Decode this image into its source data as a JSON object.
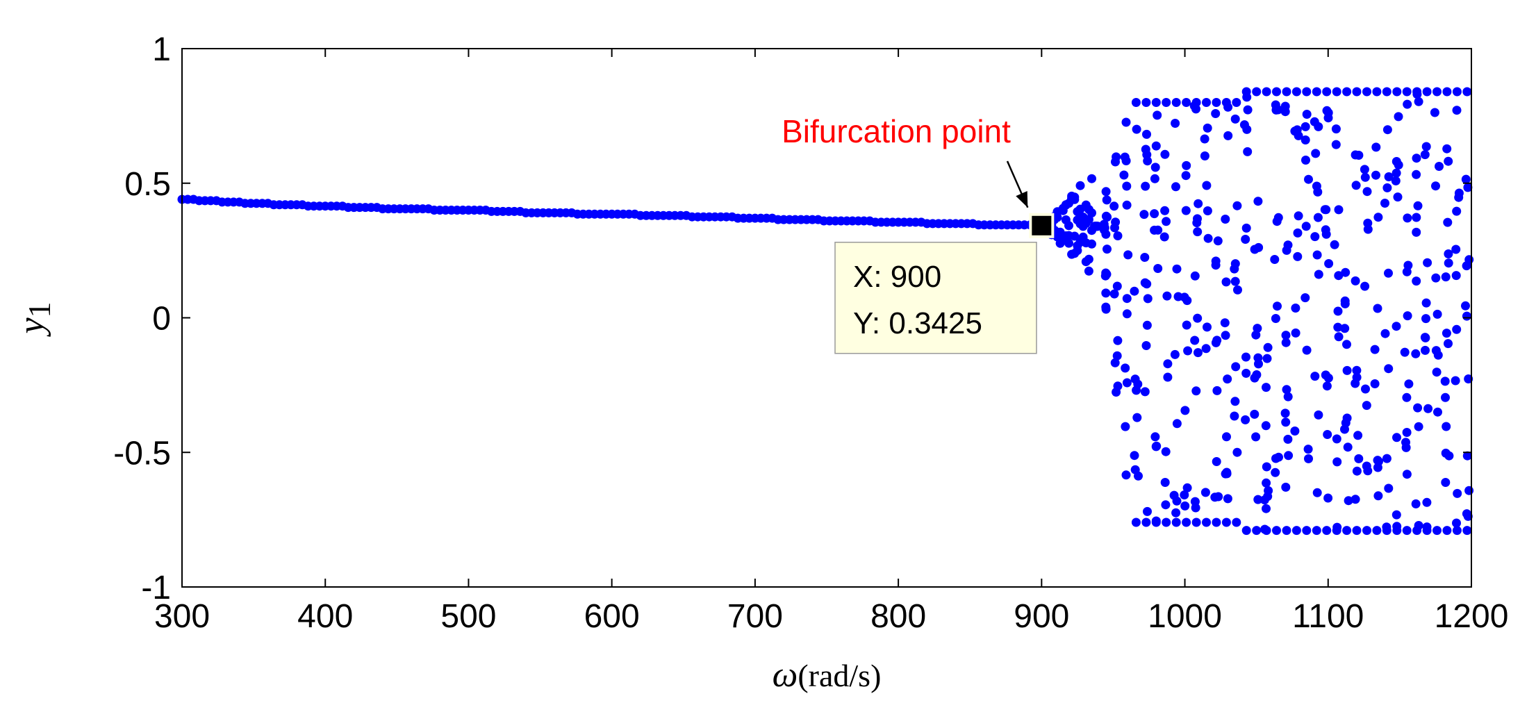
{
  "chart_data": {
    "type": "scatter",
    "title": "",
    "xlabel_symbol": "ω",
    "xlabel_unit": "(rad/s)",
    "ylabel_symbol": "y",
    "ylabel_subscript": "1",
    "xlim": [
      300,
      1200
    ],
    "ylim": [
      -1,
      1
    ],
    "x_ticks": [
      "300",
      "400",
      "500",
      "600",
      "700",
      "800",
      "900",
      "1000",
      "1100",
      "1200"
    ],
    "y_ticks": [
      "1",
      "0.5",
      "0",
      "-0.5",
      "-1"
    ],
    "grid": false,
    "marker_color": "#0000ff",
    "series": [
      {
        "stable_branch": {
          "x": [
            300,
            350,
            400,
            450,
            500,
            550,
            600,
            650,
            700,
            750,
            800,
            850,
            900
          ],
          "y": [
            0.44,
            0.425,
            0.415,
            0.405,
            0.4,
            0.39,
            0.385,
            0.378,
            0.37,
            0.362,
            0.355,
            0.348,
            0.3425
          ]
        },
        "chaotic_region": {
          "x_range": [
            910,
            1200
          ],
          "y_range": [
            -0.8,
            0.85
          ]
        }
      }
    ],
    "annotation": {
      "text": "Bifurcation point",
      "color": "#ff0000",
      "x": 900,
      "y": 0.3425
    },
    "datatip": {
      "x_label": "X: 900",
      "y_label": "Y: 0.3425",
      "x": 900,
      "y": 0.3425
    }
  }
}
